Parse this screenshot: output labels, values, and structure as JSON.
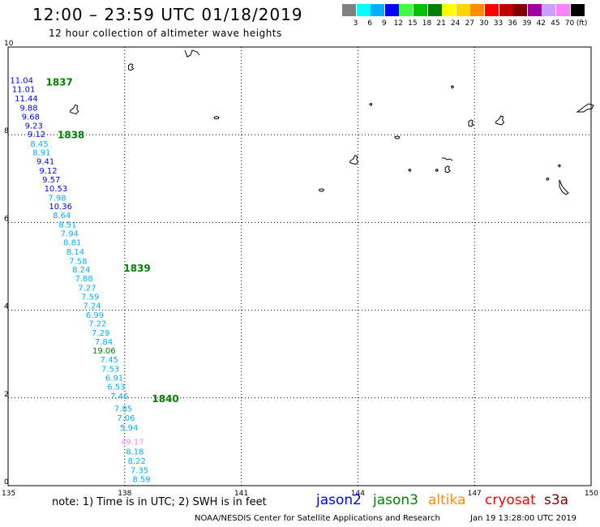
{
  "header": {
    "title": "12:00 – 23:59 UTC 01/18/2019",
    "subtitle": "12 hour collection of altimeter wave heights"
  },
  "scale": {
    "unit": "(ft)",
    "bins": [
      {
        "color": "#808080",
        "label": "3"
      },
      {
        "color": "#00ffff",
        "label": "6"
      },
      {
        "color": "#00b0ff",
        "label": "9"
      },
      {
        "color": "#0000ff",
        "label": "12"
      },
      {
        "color": "#40ff40",
        "label": "15"
      },
      {
        "color": "#00c000",
        "label": "18"
      },
      {
        "color": "#008000",
        "label": "21"
      },
      {
        "color": "#ffff00",
        "label": "24"
      },
      {
        "color": "#ffd700",
        "label": "27"
      },
      {
        "color": "#ff8c00",
        "label": "30"
      },
      {
        "color": "#ff0000",
        "label": "33"
      },
      {
        "color": "#c00000",
        "label": "36"
      },
      {
        "color": "#800000",
        "label": "39"
      },
      {
        "color": "#a000a0",
        "label": "42"
      },
      {
        "color": "#c8a0ff",
        "label": "45"
      },
      {
        "color": "#ff80ff",
        "label": "70"
      },
      {
        "color": "#000000",
        "label": ""
      }
    ]
  },
  "axes": {
    "x_ticks": [
      "135",
      "138",
      "141",
      "144",
      "147",
      "150"
    ],
    "y_ticks": [
      "0",
      "2",
      "4",
      "6",
      "8",
      "10"
    ]
  },
  "measurements": [
    {
      "lon": 135.05,
      "lat": 9.18,
      "text": "11.04",
      "color": "#0000ff"
    },
    {
      "lon": 135.1,
      "lat": 8.97,
      "text": "11.01",
      "color": "#0000ff"
    },
    {
      "lon": 135.17,
      "lat": 8.76,
      "text": "11.44",
      "color": "#0000ff"
    },
    {
      "lon": 135.3,
      "lat": 8.55,
      "text": "9.88",
      "color": "#0000ff"
    },
    {
      "lon": 135.35,
      "lat": 8.35,
      "text": "9.68",
      "color": "#0000ff"
    },
    {
      "lon": 135.43,
      "lat": 8.14,
      "text": "9.23",
      "color": "#0000ff"
    },
    {
      "lon": 135.5,
      "lat": 7.95,
      "text": "9.12",
      "color": "#0000ff"
    },
    {
      "lon": 135.57,
      "lat": 7.73,
      "text": "8.45",
      "color": "#00b0ff"
    },
    {
      "lon": 135.63,
      "lat": 7.53,
      "text": "8.91",
      "color": "#00b0ff"
    },
    {
      "lon": 135.73,
      "lat": 7.33,
      "text": "9.41",
      "color": "#0000ff"
    },
    {
      "lon": 135.8,
      "lat": 7.12,
      "text": "9.12",
      "color": "#0000ff"
    },
    {
      "lon": 135.88,
      "lat": 6.91,
      "text": "9.57",
      "color": "#0000ff"
    },
    {
      "lon": 135.93,
      "lat": 6.71,
      "text": "10.53",
      "color": "#0000ff"
    },
    {
      "lon": 136.03,
      "lat": 6.5,
      "text": "7.98",
      "color": "#00b0ff"
    },
    {
      "lon": 136.05,
      "lat": 6.3,
      "text": "10.36",
      "color": "#0000ff"
    },
    {
      "lon": 136.15,
      "lat": 6.1,
      "text": "8.64",
      "color": "#00b0ff"
    },
    {
      "lon": 136.3,
      "lat": 5.89,
      "text": "8.51",
      "color": "#00b0ff"
    },
    {
      "lon": 136.35,
      "lat": 5.68,
      "text": "7.94",
      "color": "#00b0ff"
    },
    {
      "lon": 136.42,
      "lat": 5.48,
      "text": "8.81",
      "color": "#00b0ff"
    },
    {
      "lon": 136.5,
      "lat": 5.27,
      "text": "8.14",
      "color": "#00b0ff"
    },
    {
      "lon": 136.57,
      "lat": 5.06,
      "text": "7.58",
      "color": "#00b0ff"
    },
    {
      "lon": 136.65,
      "lat": 4.86,
      "text": "8.24",
      "color": "#00b0ff"
    },
    {
      "lon": 136.72,
      "lat": 4.66,
      "text": "7.88",
      "color": "#00b0ff"
    },
    {
      "lon": 136.8,
      "lat": 4.45,
      "text": "7.27",
      "color": "#00b0ff"
    },
    {
      "lon": 136.88,
      "lat": 4.24,
      "text": "7.59",
      "color": "#00b0ff"
    },
    {
      "lon": 136.93,
      "lat": 4.04,
      "text": "7.24",
      "color": "#00b0ff"
    },
    {
      "lon": 137.0,
      "lat": 3.83,
      "text": "6.99",
      "color": "#00b0ff"
    },
    {
      "lon": 137.07,
      "lat": 3.63,
      "text": "7.22",
      "color": "#00b0ff"
    },
    {
      "lon": 137.15,
      "lat": 3.42,
      "text": "7.29",
      "color": "#00b0ff"
    },
    {
      "lon": 137.23,
      "lat": 3.22,
      "text": "7.84",
      "color": "#00b0ff"
    },
    {
      "lon": 137.17,
      "lat": 3.01,
      "text": "19.06",
      "color": "#008000"
    },
    {
      "lon": 137.37,
      "lat": 2.81,
      "text": "7.45",
      "color": "#00b0ff"
    },
    {
      "lon": 137.4,
      "lat": 2.6,
      "text": "7.53",
      "color": "#00b0ff"
    },
    {
      "lon": 137.5,
      "lat": 2.39,
      "text": "6.91",
      "color": "#00b0ff"
    },
    {
      "lon": 137.55,
      "lat": 2.19,
      "text": "6.53",
      "color": "#00b0ff"
    },
    {
      "lon": 137.63,
      "lat": 1.98,
      "text": "7.46",
      "color": "#00b0ff"
    },
    {
      "lon": 137.73,
      "lat": 1.69,
      "text": "7.85",
      "color": "#00b0ff"
    },
    {
      "lon": 137.8,
      "lat": 1.48,
      "text": "7.06",
      "color": "#00b0ff"
    },
    {
      "lon": 137.88,
      "lat": 1.26,
      "text": "5.94",
      "color": "#00b0ff"
    },
    {
      "lon": 137.9,
      "lat": 0.93,
      "text": "49.17",
      "color": "#ff80ff"
    },
    {
      "lon": 138.03,
      "lat": 0.71,
      "text": "8.18",
      "color": "#00b0ff"
    },
    {
      "lon": 138.08,
      "lat": 0.5,
      "text": "8.22",
      "color": "#00b0ff"
    },
    {
      "lon": 138.15,
      "lat": 0.29,
      "text": "7.35",
      "color": "#00b0ff"
    },
    {
      "lon": 138.2,
      "lat": 0.08,
      "text": "8.59",
      "color": "#00b0ff"
    }
  ],
  "passes": [
    {
      "lon": 135.97,
      "lat": 9.12,
      "text": "1837"
    },
    {
      "lon": 136.27,
      "lat": 7.92,
      "text": "1838"
    },
    {
      "lon": 137.97,
      "lat": 4.88,
      "text": "1839"
    },
    {
      "lon": 138.7,
      "lat": 1.9,
      "text": "1840"
    }
  ],
  "islands": [
    {
      "lon": 138.1,
      "lat": 9.58
    },
    {
      "lon": 136.6,
      "lat": 8.55
    },
    {
      "lon": 140.3,
      "lat": 8.4
    },
    {
      "lon": 144.3,
      "lat": 8.7
    },
    {
      "lon": 146.4,
      "lat": 9.1
    },
    {
      "lon": 146.85,
      "lat": 8.3
    },
    {
      "lon": 147.55,
      "lat": 8.3
    },
    {
      "lon": 144.95,
      "lat": 7.95
    },
    {
      "lon": 145.3,
      "lat": 7.2
    },
    {
      "lon": 146.0,
      "lat": 7.2
    },
    {
      "lon": 146.25,
      "lat": 7.25
    },
    {
      "lon": 143.8,
      "lat": 7.4
    },
    {
      "lon": 143.0,
      "lat": 6.75
    },
    {
      "lon": 149.15,
      "lat": 7.3
    },
    {
      "lon": 148.85,
      "lat": 7.0
    }
  ],
  "footer": {
    "note": "note:  1) Time is in UTC;  2) SWH is in feet",
    "satellites": [
      {
        "name": "jason2",
        "color": "#0000ff"
      },
      {
        "name": "jason3",
        "color": "#008000"
      },
      {
        "name": "altika",
        "color": "#ff8c00"
      },
      {
        "name": "cryosat",
        "color": "#ff0000"
      },
      {
        "name": "s3a",
        "color": "#800000"
      }
    ],
    "credit": "NOAA/NESDIS Center for Satellite Applications and Research",
    "timestamp": "Jan 19 13:28:00 UTC 2019"
  }
}
